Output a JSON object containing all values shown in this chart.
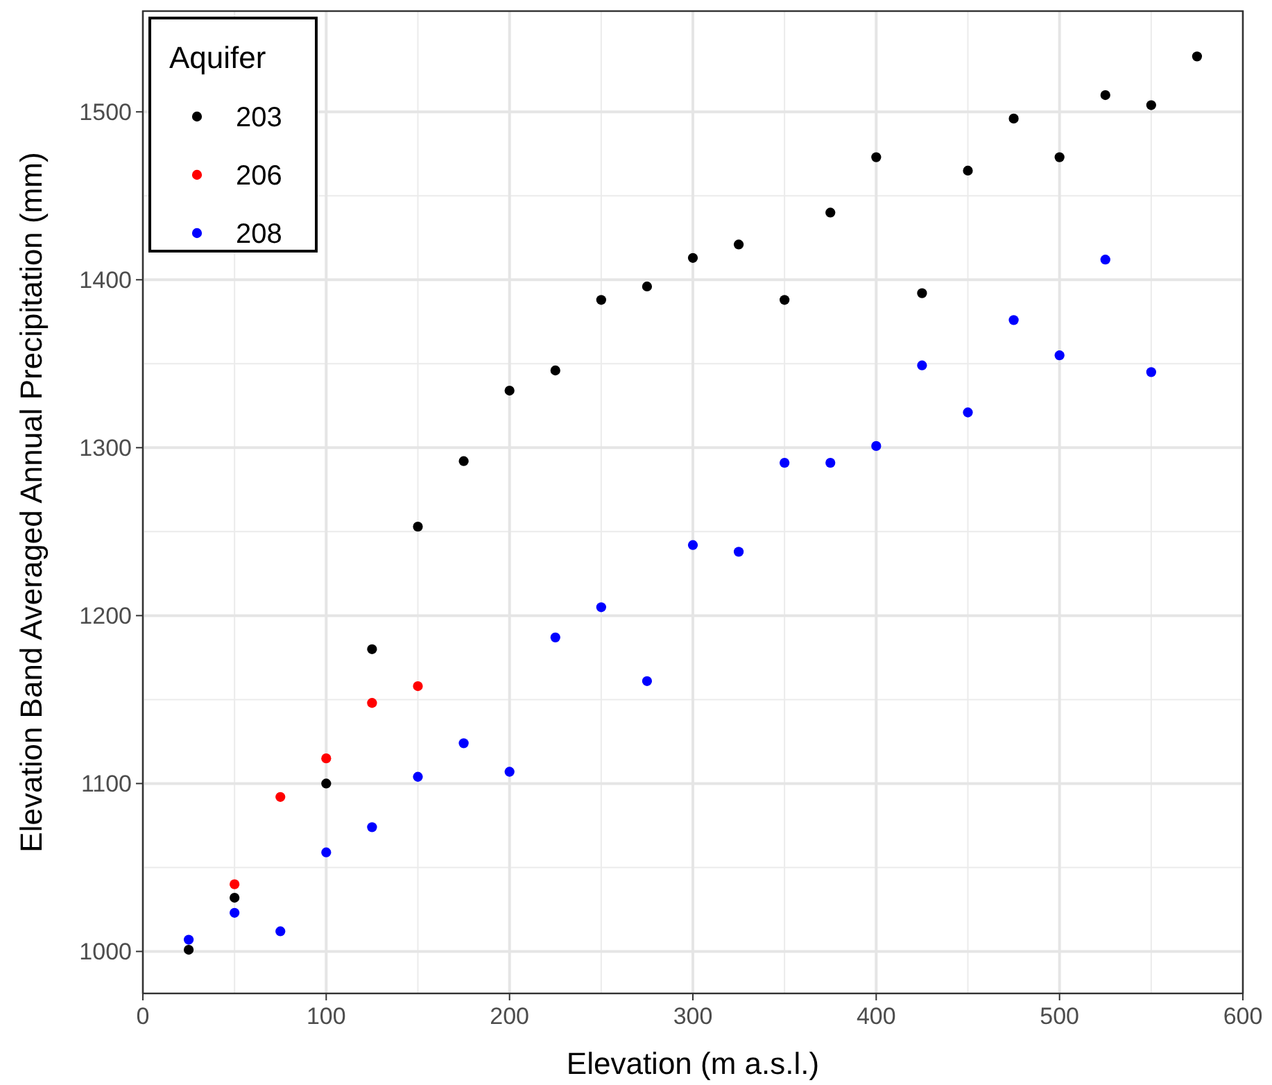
{
  "chart_data": {
    "type": "scatter",
    "xlabel": "Elevation (m a.s.l.)",
    "ylabel": "Elevation Band Averaged Annual Precipitation (mm)",
    "legend_title": "Aquifer",
    "legend": "top left",
    "grid": true,
    "marker": "circle",
    "xlim": [
      0,
      600
    ],
    "xticks": [
      0,
      100,
      200,
      300,
      400,
      500,
      600
    ],
    "ylim": [
      975,
      1560
    ],
    "yticks": [
      1000,
      1100,
      1200,
      1300,
      1400,
      1500
    ],
    "series": [
      {
        "name": "203",
        "color": "#000000",
        "x": [
          25,
          50,
          100,
          125,
          150,
          175,
          200,
          225,
          250,
          275,
          300,
          325,
          350,
          375,
          400,
          425,
          450,
          475,
          500,
          525,
          550,
          575
        ],
        "values": [
          1001,
          1032,
          1100,
          1180,
          1253,
          1292,
          1334,
          1346,
          1388,
          1396,
          1413,
          1421,
          1388,
          1440,
          1473,
          1392,
          1465,
          1496,
          1473,
          1510,
          1504,
          1533
        ]
      },
      {
        "name": "206",
        "color": "#ff0000",
        "x": [
          50,
          75,
          100,
          125,
          150
        ],
        "values": [
          1040,
          1092,
          1115,
          1148,
          1158
        ]
      },
      {
        "name": "208",
        "color": "#0000ff",
        "x": [
          25,
          50,
          75,
          100,
          125,
          150,
          175,
          200,
          225,
          250,
          275,
          300,
          325,
          350,
          375,
          400,
          425,
          450,
          475,
          500,
          525,
          550
        ],
        "values": [
          1007,
          1023,
          1012,
          1059,
          1074,
          1104,
          1124,
          1107,
          1187,
          1205,
          1161,
          1242,
          1238,
          1291,
          1291,
          1301,
          1349,
          1321,
          1376,
          1355,
          1412,
          1345
        ]
      }
    ]
  }
}
